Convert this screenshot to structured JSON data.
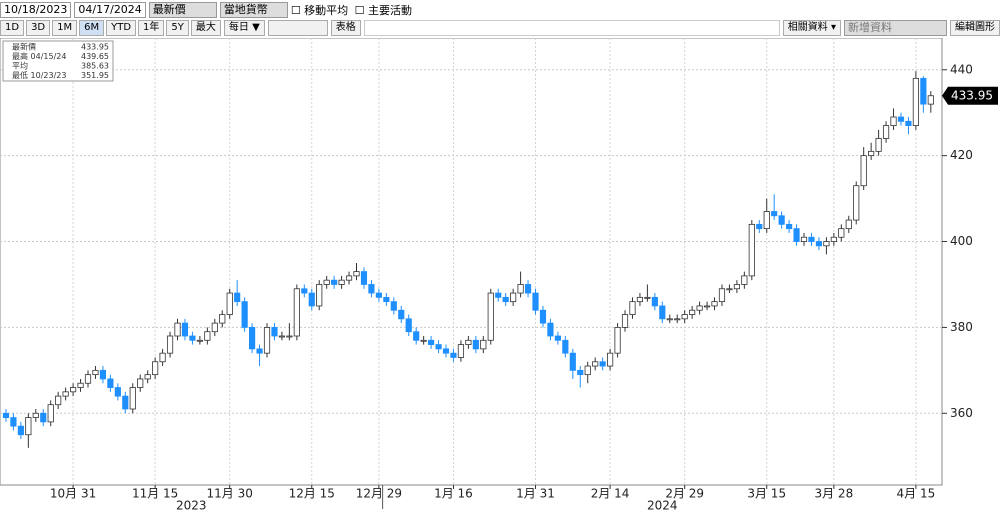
{
  "toolbar": {
    "start_date": "10/18/2023",
    "end_date": "04/17/2024",
    "field": "最新價",
    "currency": "當地貨幣",
    "moving_average": "移動平均",
    "events": "主要活動",
    "periods": [
      "1D",
      "3D",
      "1M",
      "6M",
      "YTD",
      "1年",
      "5Y",
      "最大"
    ],
    "frequency": "每日 ▼",
    "table": "表格",
    "related": "相關資料 ▾",
    "add_data": "新增資料",
    "edit_chart": "編輯圖形"
  },
  "chart_data": {
    "type": "candlestick",
    "legend_box": [
      {
        "label": "最新價",
        "value": 433.95
      },
      {
        "label": "最高 04/15/24",
        "value": 439.65
      },
      {
        "label": "平均",
        "value": 385.63
      },
      {
        "label": "最低 10/23/23",
        "value": 351.95
      }
    ],
    "open": [
      360,
      359,
      357,
      355,
      359,
      360,
      358,
      362,
      364,
      365,
      366,
      367,
      369,
      370,
      368,
      366,
      364,
      361,
      366,
      368,
      369,
      372,
      374,
      378,
      381,
      378,
      377,
      377,
      379,
      381,
      383,
      388,
      386,
      380,
      375,
      374,
      380,
      378,
      378,
      378,
      389,
      388,
      385,
      390,
      391,
      390,
      391,
      392,
      393,
      390,
      388,
      387,
      386,
      384,
      382,
      379,
      377,
      377,
      376,
      375,
      374,
      373,
      376,
      377,
      375,
      377,
      388,
      387,
      386,
      388,
      390,
      388,
      384,
      381,
      378,
      377,
      374,
      370,
      369,
      371,
      372,
      371,
      374,
      380,
      383,
      386,
      387,
      387,
      385,
      382,
      382,
      382,
      383,
      384,
      385,
      385,
      386,
      389,
      389,
      390,
      392,
      404,
      403,
      407,
      406,
      404,
      403,
      400,
      401,
      400,
      399,
      400,
      401,
      403,
      405,
      413,
      420,
      421,
      424,
      427,
      429,
      428,
      427,
      438,
      432
    ],
    "high": [
      361,
      360,
      358,
      360,
      361,
      361,
      363,
      365,
      366,
      367,
      368,
      370,
      371,
      371,
      369,
      367,
      365,
      367,
      369,
      370,
      373,
      375,
      379,
      382,
      382,
      379,
      378,
      380,
      382,
      384,
      389,
      391,
      387,
      381,
      376,
      381,
      381,
      379,
      381,
      390,
      390,
      389,
      391,
      392,
      392,
      392,
      393,
      395,
      394,
      391,
      389,
      388,
      387,
      385,
      383,
      380,
      378,
      378,
      377,
      376,
      375,
      377,
      378,
      378,
      378,
      389,
      389,
      388,
      389,
      393,
      391,
      389,
      385,
      382,
      379,
      378,
      375,
      371,
      372,
      373,
      373,
      375,
      381,
      384,
      387,
      388,
      390,
      388,
      386,
      383,
      383,
      384,
      385,
      386,
      386,
      387,
      390,
      390,
      391,
      393,
      405,
      405,
      410,
      411,
      407,
      405,
      404,
      402,
      402,
      401,
      401,
      402,
      404,
      406,
      414,
      422,
      423,
      426,
      428,
      431,
      430,
      429,
      439.65,
      438.5,
      435
    ],
    "low": [
      358,
      356,
      354,
      351.95,
      358,
      357,
      357,
      361,
      363,
      364,
      365,
      366,
      368,
      367,
      365,
      363,
      360,
      360,
      365,
      367,
      368,
      371,
      373,
      377,
      377,
      376,
      376,
      376,
      378,
      380,
      382,
      385,
      379,
      374,
      371,
      373,
      377,
      377,
      377,
      377,
      387,
      384,
      384,
      389,
      389,
      389,
      390,
      391,
      389,
      387,
      386,
      385,
      383,
      381,
      378,
      376,
      376,
      375,
      374,
      373,
      372,
      372,
      375,
      374,
      374,
      376,
      386,
      385,
      385,
      387,
      387,
      383,
      380,
      377,
      376,
      373,
      368,
      366,
      367,
      370,
      370,
      370,
      373,
      379,
      382,
      385,
      386,
      384,
      381,
      381,
      381,
      381,
      382,
      383,
      384,
      384,
      385,
      388,
      388,
      389,
      391,
      402,
      402,
      405,
      403,
      402,
      399,
      399,
      399,
      398,
      397,
      399,
      400,
      402,
      404,
      412,
      419,
      420,
      423,
      426,
      427,
      425,
      426,
      430,
      430
    ],
    "close": [
      359,
      357,
      355,
      359,
      360,
      358,
      362,
      364,
      365,
      366,
      367,
      369,
      370,
      368,
      366,
      364,
      361,
      366,
      368,
      369,
      372,
      374,
      378,
      381,
      378,
      377,
      377,
      379,
      381,
      383,
      388,
      386,
      380,
      375,
      374,
      380,
      378,
      378,
      378,
      389,
      388,
      385,
      390,
      391,
      390,
      391,
      392,
      393,
      390,
      388,
      387,
      386,
      384,
      382,
      379,
      377,
      377,
      376,
      375,
      374,
      373,
      376,
      377,
      375,
      377,
      388,
      387,
      386,
      388,
      390,
      388,
      384,
      381,
      378,
      377,
      374,
      370,
      369,
      371,
      372,
      371,
      374,
      380,
      383,
      386,
      387,
      387,
      385,
      382,
      382,
      382,
      383,
      384,
      385,
      385,
      386,
      389,
      389,
      390,
      392,
      404,
      403,
      407,
      406,
      404,
      403,
      400,
      401,
      400,
      399,
      400,
      401,
      403,
      405,
      413,
      420,
      421,
      424,
      427,
      429,
      428,
      427,
      438,
      432,
      433.95
    ],
    "up_color": "#ffffff",
    "down_color": "#1e8fff",
    "ylim": [
      343.3,
      447.4
    ],
    "yticks": [
      360,
      380,
      400,
      420,
      440
    ],
    "xticks": [
      {
        "value": 9,
        "label": "10月 31"
      },
      {
        "value": 20,
        "label": "11月 15"
      },
      {
        "value": 30,
        "label": "11月 30"
      },
      {
        "value": 41,
        "label": "12月 15"
      },
      {
        "value": 50,
        "label": "12月 29"
      },
      {
        "value": 60,
        "label": "1月 16"
      },
      {
        "value": 71,
        "label": "1月 31"
      },
      {
        "value": 81,
        "label": "2月 14"
      },
      {
        "value": 91,
        "label": "2月 29"
      },
      {
        "value": 102,
        "label": "3月 15"
      },
      {
        "value": 111,
        "label": "3月 28"
      },
      {
        "value": 122,
        "label": "4月 15"
      }
    ],
    "years": [
      "2023",
      "2024"
    ],
    "grid": true
  }
}
